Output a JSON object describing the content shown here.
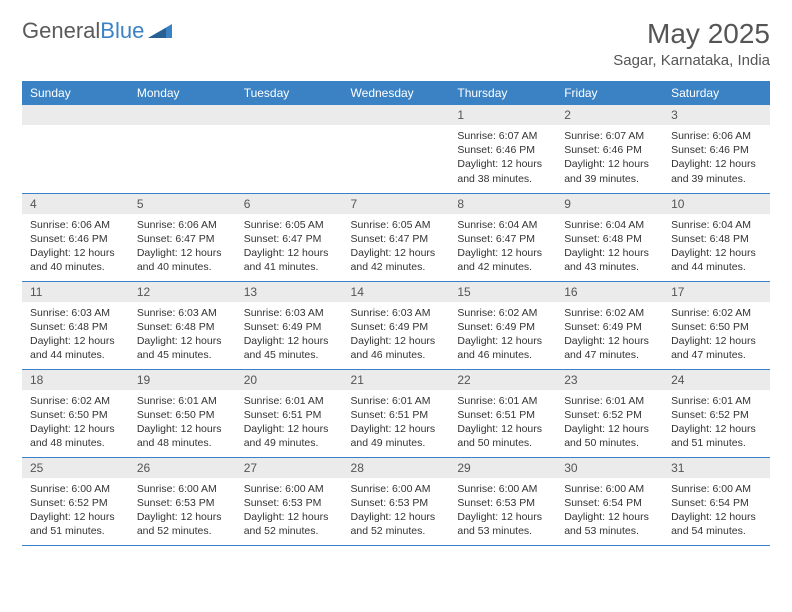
{
  "logo": {
    "part1": "General",
    "part2": "Blue"
  },
  "title": "May 2025",
  "location": "Sagar, Karnataka, India",
  "colors": {
    "header_bg": "#3b82c4",
    "header_text": "#ffffff",
    "daynum_bg": "#ebebeb",
    "text": "#333333",
    "border": "#3b82c4",
    "background": "#ffffff"
  },
  "day_headers": [
    "Sunday",
    "Monday",
    "Tuesday",
    "Wednesday",
    "Thursday",
    "Friday",
    "Saturday"
  ],
  "weeks": [
    [
      {
        "num": "",
        "sunrise": "",
        "sunset": "",
        "daylight": ""
      },
      {
        "num": "",
        "sunrise": "",
        "sunset": "",
        "daylight": ""
      },
      {
        "num": "",
        "sunrise": "",
        "sunset": "",
        "daylight": ""
      },
      {
        "num": "",
        "sunrise": "",
        "sunset": "",
        "daylight": ""
      },
      {
        "num": "1",
        "sunrise": "Sunrise: 6:07 AM",
        "sunset": "Sunset: 6:46 PM",
        "daylight": "Daylight: 12 hours and 38 minutes."
      },
      {
        "num": "2",
        "sunrise": "Sunrise: 6:07 AM",
        "sunset": "Sunset: 6:46 PM",
        "daylight": "Daylight: 12 hours and 39 minutes."
      },
      {
        "num": "3",
        "sunrise": "Sunrise: 6:06 AM",
        "sunset": "Sunset: 6:46 PM",
        "daylight": "Daylight: 12 hours and 39 minutes."
      }
    ],
    [
      {
        "num": "4",
        "sunrise": "Sunrise: 6:06 AM",
        "sunset": "Sunset: 6:46 PM",
        "daylight": "Daylight: 12 hours and 40 minutes."
      },
      {
        "num": "5",
        "sunrise": "Sunrise: 6:06 AM",
        "sunset": "Sunset: 6:47 PM",
        "daylight": "Daylight: 12 hours and 40 minutes."
      },
      {
        "num": "6",
        "sunrise": "Sunrise: 6:05 AM",
        "sunset": "Sunset: 6:47 PM",
        "daylight": "Daylight: 12 hours and 41 minutes."
      },
      {
        "num": "7",
        "sunrise": "Sunrise: 6:05 AM",
        "sunset": "Sunset: 6:47 PM",
        "daylight": "Daylight: 12 hours and 42 minutes."
      },
      {
        "num": "8",
        "sunrise": "Sunrise: 6:04 AM",
        "sunset": "Sunset: 6:47 PM",
        "daylight": "Daylight: 12 hours and 42 minutes."
      },
      {
        "num": "9",
        "sunrise": "Sunrise: 6:04 AM",
        "sunset": "Sunset: 6:48 PM",
        "daylight": "Daylight: 12 hours and 43 minutes."
      },
      {
        "num": "10",
        "sunrise": "Sunrise: 6:04 AM",
        "sunset": "Sunset: 6:48 PM",
        "daylight": "Daylight: 12 hours and 44 minutes."
      }
    ],
    [
      {
        "num": "11",
        "sunrise": "Sunrise: 6:03 AM",
        "sunset": "Sunset: 6:48 PM",
        "daylight": "Daylight: 12 hours and 44 minutes."
      },
      {
        "num": "12",
        "sunrise": "Sunrise: 6:03 AM",
        "sunset": "Sunset: 6:48 PM",
        "daylight": "Daylight: 12 hours and 45 minutes."
      },
      {
        "num": "13",
        "sunrise": "Sunrise: 6:03 AM",
        "sunset": "Sunset: 6:49 PM",
        "daylight": "Daylight: 12 hours and 45 minutes."
      },
      {
        "num": "14",
        "sunrise": "Sunrise: 6:03 AM",
        "sunset": "Sunset: 6:49 PM",
        "daylight": "Daylight: 12 hours and 46 minutes."
      },
      {
        "num": "15",
        "sunrise": "Sunrise: 6:02 AM",
        "sunset": "Sunset: 6:49 PM",
        "daylight": "Daylight: 12 hours and 46 minutes."
      },
      {
        "num": "16",
        "sunrise": "Sunrise: 6:02 AM",
        "sunset": "Sunset: 6:49 PM",
        "daylight": "Daylight: 12 hours and 47 minutes."
      },
      {
        "num": "17",
        "sunrise": "Sunrise: 6:02 AM",
        "sunset": "Sunset: 6:50 PM",
        "daylight": "Daylight: 12 hours and 47 minutes."
      }
    ],
    [
      {
        "num": "18",
        "sunrise": "Sunrise: 6:02 AM",
        "sunset": "Sunset: 6:50 PM",
        "daylight": "Daylight: 12 hours and 48 minutes."
      },
      {
        "num": "19",
        "sunrise": "Sunrise: 6:01 AM",
        "sunset": "Sunset: 6:50 PM",
        "daylight": "Daylight: 12 hours and 48 minutes."
      },
      {
        "num": "20",
        "sunrise": "Sunrise: 6:01 AM",
        "sunset": "Sunset: 6:51 PM",
        "daylight": "Daylight: 12 hours and 49 minutes."
      },
      {
        "num": "21",
        "sunrise": "Sunrise: 6:01 AM",
        "sunset": "Sunset: 6:51 PM",
        "daylight": "Daylight: 12 hours and 49 minutes."
      },
      {
        "num": "22",
        "sunrise": "Sunrise: 6:01 AM",
        "sunset": "Sunset: 6:51 PM",
        "daylight": "Daylight: 12 hours and 50 minutes."
      },
      {
        "num": "23",
        "sunrise": "Sunrise: 6:01 AM",
        "sunset": "Sunset: 6:52 PM",
        "daylight": "Daylight: 12 hours and 50 minutes."
      },
      {
        "num": "24",
        "sunrise": "Sunrise: 6:01 AM",
        "sunset": "Sunset: 6:52 PM",
        "daylight": "Daylight: 12 hours and 51 minutes."
      }
    ],
    [
      {
        "num": "25",
        "sunrise": "Sunrise: 6:00 AM",
        "sunset": "Sunset: 6:52 PM",
        "daylight": "Daylight: 12 hours and 51 minutes."
      },
      {
        "num": "26",
        "sunrise": "Sunrise: 6:00 AM",
        "sunset": "Sunset: 6:53 PM",
        "daylight": "Daylight: 12 hours and 52 minutes."
      },
      {
        "num": "27",
        "sunrise": "Sunrise: 6:00 AM",
        "sunset": "Sunset: 6:53 PM",
        "daylight": "Daylight: 12 hours and 52 minutes."
      },
      {
        "num": "28",
        "sunrise": "Sunrise: 6:00 AM",
        "sunset": "Sunset: 6:53 PM",
        "daylight": "Daylight: 12 hours and 52 minutes."
      },
      {
        "num": "29",
        "sunrise": "Sunrise: 6:00 AM",
        "sunset": "Sunset: 6:53 PM",
        "daylight": "Daylight: 12 hours and 53 minutes."
      },
      {
        "num": "30",
        "sunrise": "Sunrise: 6:00 AM",
        "sunset": "Sunset: 6:54 PM",
        "daylight": "Daylight: 12 hours and 53 minutes."
      },
      {
        "num": "31",
        "sunrise": "Sunrise: 6:00 AM",
        "sunset": "Sunset: 6:54 PM",
        "daylight": "Daylight: 12 hours and 54 minutes."
      }
    ]
  ]
}
